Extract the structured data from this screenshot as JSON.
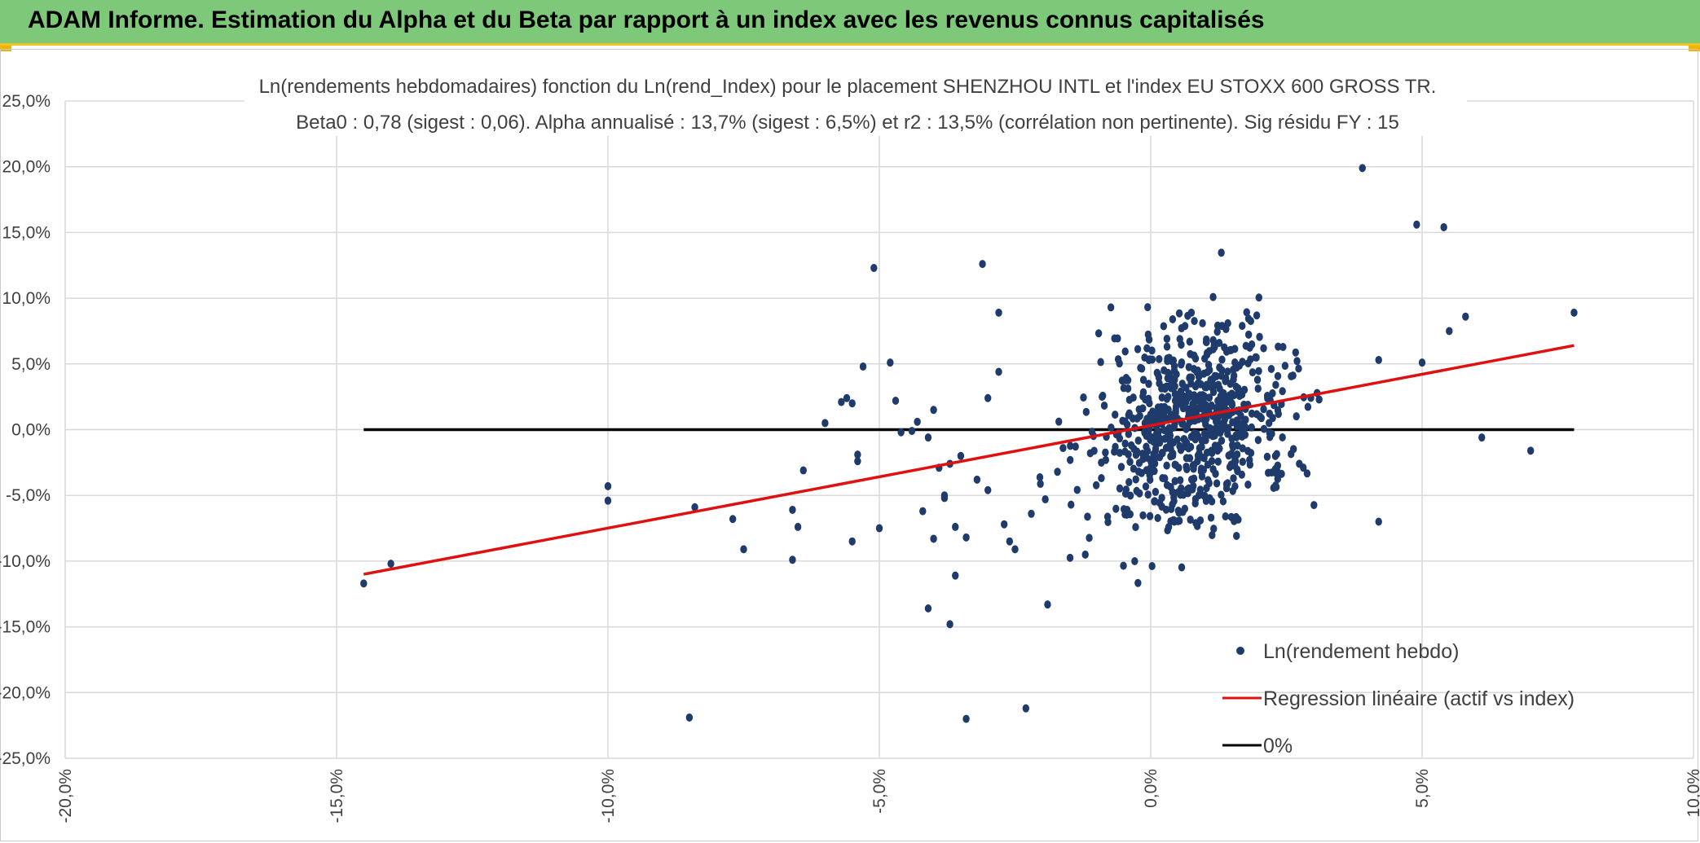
{
  "header": {
    "title": "ADAM Informe. Estimation du Alpha et du Beta par rapport à un index avec les revenus connus capitalisés"
  },
  "colors": {
    "header_bg": "#7ec87a",
    "points": "#1f3b6b",
    "regression": "#e01010",
    "zero": "#000000",
    "grid": "#d9d9d9"
  },
  "chart_data": {
    "type": "scatter",
    "title_line1": "Ln(rendements hebdomadaires) fonction du Ln(rend_Index) pour le placement SHENZHOU INTL et l'index EU STOXX 600 GROSS TR.",
    "title_line2": "Beta0 : 0,78 (sigest : 0,06). Alpha annualisé : 13,7% (sigest : 6,5%) et r2 : 13,5% (corrélation non pertinente). Sig résidu FY : 15",
    "xlim": [
      -0.2,
      0.1
    ],
    "ylim": [
      -0.25,
      0.25
    ],
    "x_ticks": [
      -0.2,
      -0.15,
      -0.1,
      -0.05,
      0.0,
      0.05,
      0.1
    ],
    "x_tick_labels": [
      "-20,0%",
      "-15,0%",
      "-10,0%",
      "-5,0%",
      "0,0%",
      "5,0%",
      "10,0%"
    ],
    "y_ticks": [
      0.25,
      0.2,
      0.15,
      0.1,
      0.05,
      0.0,
      -0.05,
      -0.1,
      -0.15,
      -0.2,
      -0.25
    ],
    "y_tick_labels": [
      "25,0%",
      "20,0%",
      "15,0%",
      "10,0%",
      "5,0%",
      "0,0%",
      "-5,0%",
      "-10,0%",
      "-15,0%",
      "-20,0%",
      "-25,0%"
    ],
    "regression": {
      "beta": 0.78,
      "x_start": -0.145,
      "x_end": 0.078,
      "y_start": -0.11,
      "y_end": 0.064
    },
    "zero_line": {
      "x_start": -0.145,
      "x_end": 0.078,
      "y": 0.0
    },
    "legend": {
      "position": "bottom-right",
      "items": [
        {
          "label": "Ln(rendement hebdo)",
          "kind": "marker"
        },
        {
          "label": "Regression linéaire (actif vs index)",
          "kind": "line-red"
        },
        {
          "label": "0%",
          "kind": "line-black"
        }
      ]
    },
    "outlier_points": [
      [
        0.039,
        0.199
      ],
      [
        0.049,
        0.156
      ],
      [
        0.054,
        0.154
      ],
      [
        0.078,
        0.089
      ],
      [
        0.058,
        0.086
      ],
      [
        0.055,
        0.075
      ],
      [
        0.042,
        0.053
      ],
      [
        0.05,
        0.051
      ],
      [
        0.061,
        -0.006
      ],
      [
        0.07,
        -0.016
      ],
      [
        0.042,
        -0.07
      ],
      [
        -0.145,
        -0.117
      ],
      [
        -0.14,
        -0.102
      ],
      [
        -0.1,
        -0.043
      ],
      [
        -0.1,
        -0.054
      ],
      [
        -0.084,
        -0.059
      ],
      [
        -0.077,
        -0.068
      ],
      [
        -0.075,
        -0.091
      ],
      [
        -0.066,
        -0.061
      ],
      [
        -0.066,
        -0.099
      ],
      [
        -0.065,
        -0.074
      ],
      [
        -0.064,
        -0.031
      ],
      [
        -0.06,
        0.005
      ],
      [
        -0.057,
        0.021
      ],
      [
        -0.056,
        0.024
      ],
      [
        -0.055,
        -0.085
      ],
      [
        -0.054,
        -0.019
      ],
      [
        -0.054,
        -0.024
      ],
      [
        -0.055,
        0.02
      ],
      [
        -0.053,
        0.048
      ],
      [
        -0.051,
        0.123
      ],
      [
        -0.05,
        -0.075
      ],
      [
        -0.048,
        0.051
      ],
      [
        -0.047,
        0.022
      ],
      [
        -0.046,
        -0.002
      ],
      [
        -0.044,
        -0.001
      ],
      [
        -0.043,
        0.006
      ],
      [
        -0.042,
        -0.062
      ],
      [
        -0.041,
        -0.006
      ],
      [
        -0.04,
        -0.083
      ],
      [
        -0.041,
        -0.136
      ],
      [
        -0.038,
        -0.05
      ],
      [
        -0.036,
        -0.074
      ],
      [
        -0.036,
        -0.111
      ],
      [
        -0.037,
        -0.148
      ],
      [
        -0.034,
        -0.082
      ],
      [
        -0.034,
        -0.22
      ],
      [
        -0.031,
        0.126
      ],
      [
        -0.028,
        0.044
      ],
      [
        -0.028,
        0.089
      ],
      [
        -0.025,
        -0.091
      ],
      [
        -0.023,
        -0.212
      ],
      [
        -0.019,
        -0.133
      ],
      [
        -0.085,
        -0.219
      ],
      [
        -0.037,
        -0.026
      ],
      [
        -0.039,
        -0.029
      ],
      [
        -0.04,
        0.015
      ],
      [
        -0.035,
        -0.02
      ],
      [
        -0.038,
        -0.052
      ],
      [
        -0.03,
        -0.046
      ],
      [
        -0.026,
        -0.085
      ],
      [
        -0.027,
        -0.072
      ],
      [
        -0.03,
        0.024
      ],
      [
        -0.032,
        -0.038
      ],
      [
        -0.022,
        -0.064
      ]
    ],
    "cluster": {
      "n": 720,
      "center_x": 0.007,
      "center_y": 0.004,
      "sd_x": 0.009,
      "sd_y": 0.038,
      "seed": 42
    }
  }
}
